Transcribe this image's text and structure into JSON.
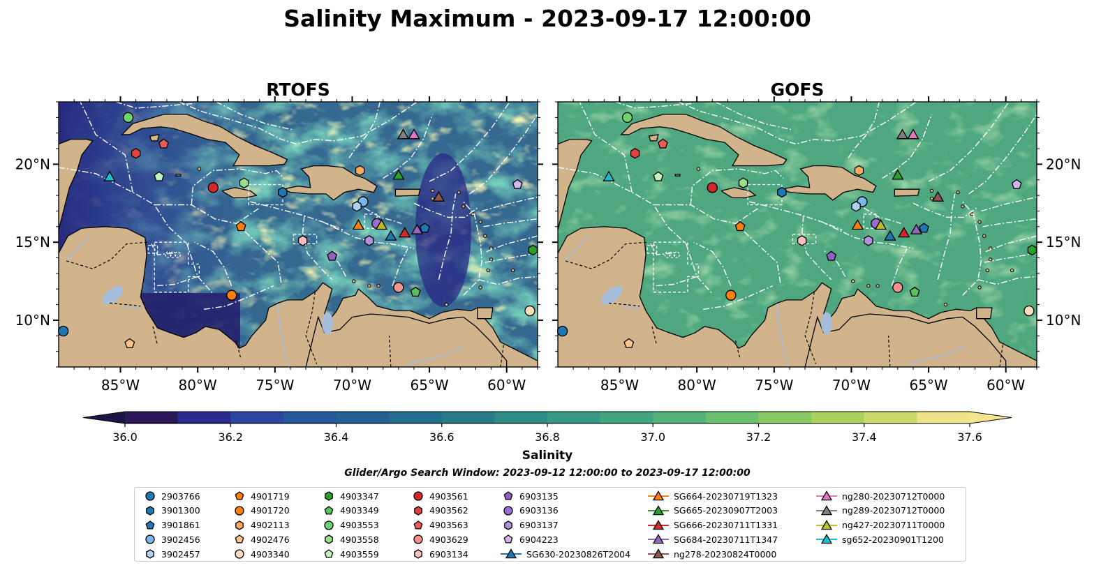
{
  "figure": {
    "suptitle": "Salinity Maximum - 2023-09-17 12:00:00",
    "panels": [
      {
        "title": "RTOFS"
      },
      {
        "title": "GOFS"
      }
    ],
    "colorbar": {
      "label": "Salinity",
      "min": 36.0,
      "max": 37.6,
      "step": 0.1,
      "extend": "both",
      "ticks": [
        "36.0",
        "36.2",
        "36.4",
        "36.6",
        "36.8",
        "37.0",
        "37.2",
        "37.4",
        "37.6"
      ],
      "colors": [
        "#2a1858",
        "#2c2a8e",
        "#2a46a0",
        "#26589c",
        "#235f93",
        "#226c8d",
        "#277c88",
        "#2e8b84",
        "#379985",
        "#41a67e",
        "#52b277",
        "#6ac06e",
        "#89c963",
        "#aad15d",
        "#cbd968",
        "#ede389"
      ]
    },
    "search_window": "Glider/Argo Search Window: 2023-09-12 12:00:00 to 2023-09-17 12:00:00",
    "colors": {
      "land": "#d2b48c",
      "river": "#a6bddb",
      "gofs_ocean": "#4fa87f",
      "boundary": "#ffffff"
    }
  },
  "chart_data": {
    "type": "map",
    "extent": {
      "lon": [
        -89,
        -58
      ],
      "lat": [
        7,
        24
      ]
    },
    "x_ticks": [
      "85°W",
      "80°W",
      "75°W",
      "70°W",
      "65°W",
      "60°W"
    ],
    "x_tick_values": [
      -85,
      -80,
      -75,
      -70,
      -65,
      -60
    ],
    "y_ticks": [
      "10°N",
      "15°N",
      "20°N"
    ],
    "y_tick_values": [
      10,
      15,
      20
    ],
    "legend": [
      {
        "label": "2903766",
        "marker": "circle",
        "color": "#1f77b4",
        "lon": -88.7,
        "lat": 9.3
      },
      {
        "label": "3901300",
        "marker": "hexagon",
        "color": "#1f77b4",
        "lon": -74.5,
        "lat": 18.2
      },
      {
        "label": "3901861",
        "marker": "pentagon",
        "color": "#1f77b4",
        "lon": -65.3,
        "lat": 15.9
      },
      {
        "label": "3902456",
        "marker": "circle",
        "color": "#7ab6e8",
        "lon": -69.3,
        "lat": 17.6
      },
      {
        "label": "3902457",
        "marker": "hexagon",
        "color": "#aed1f2",
        "lon": -69.7,
        "lat": 17.3
      },
      {
        "label": "4901719",
        "marker": "pentagon",
        "color": "#ff7f0e",
        "lon": -77.2,
        "lat": 16.0
      },
      {
        "label": "4901720",
        "marker": "circle",
        "color": "#ff7f0e",
        "lon": -77.8,
        "lat": 11.6
      },
      {
        "label": "4902113",
        "marker": "hexagon",
        "color": "#ffab5e",
        "lon": -69.5,
        "lat": 19.6
      },
      {
        "label": "4902476",
        "marker": "pentagon",
        "color": "#ffc48c",
        "lon": -84.4,
        "lat": 8.5
      },
      {
        "label": "4903340",
        "marker": "circle",
        "color": "#ffdcbc",
        "lon": -58.5,
        "lat": 10.6
      },
      {
        "label": "4903347",
        "marker": "hexagon",
        "color": "#2ca02c",
        "lon": -58.3,
        "lat": 14.5
      },
      {
        "label": "4903349",
        "marker": "pentagon",
        "color": "#5cc05c",
        "lon": -65.9,
        "lat": 11.8
      },
      {
        "label": "4903553",
        "marker": "circle",
        "color": "#6fd36f",
        "lon": -84.5,
        "lat": 23.0
      },
      {
        "label": "4903558",
        "marker": "hexagon",
        "color": "#98df8a",
        "lon": -77.0,
        "lat": 18.8
      },
      {
        "label": "4903559",
        "marker": "pentagon",
        "color": "#c5f2bd",
        "lon": -82.5,
        "lat": 19.2
      },
      {
        "label": "4903561",
        "marker": "circle",
        "color": "#d62728",
        "lon": -79.0,
        "lat": 18.5
      },
      {
        "label": "4903562",
        "marker": "hexagon",
        "color": "#e0403e",
        "lon": -84.0,
        "lat": 20.7
      },
      {
        "label": "4903563",
        "marker": "pentagon",
        "color": "#ee5a5a",
        "lon": -82.2,
        "lat": 21.3
      },
      {
        "label": "4903629",
        "marker": "circle",
        "color": "#f4908e",
        "lon": -67.0,
        "lat": 12.1
      },
      {
        "label": "6903134",
        "marker": "hexagon",
        "color": "#fbc0bd",
        "lon": -73.2,
        "lat": 15.1
      },
      {
        "label": "6903135",
        "marker": "pentagon",
        "color": "#8f62bf",
        "lon": -71.3,
        "lat": 14.1
      },
      {
        "label": "6903136",
        "marker": "circle",
        "color": "#9b6fcf",
        "lon": -68.4,
        "lat": 16.2
      },
      {
        "label": "6903137",
        "marker": "hexagon",
        "color": "#b392dd",
        "lon": -68.9,
        "lat": 15.1
      },
      {
        "label": "6904223",
        "marker": "pentagon",
        "color": "#d3b6f0",
        "lon": -59.3,
        "lat": 18.7
      },
      {
        "label": "SG630-20230826T2004",
        "marker": "triangle",
        "color": "#1f77b4",
        "lon": -67.5,
        "lat": 15.4
      },
      {
        "label": "SG664-20230719T1323",
        "marker": "triangle",
        "color": "#ff7f0e",
        "lon": -69.6,
        "lat": 16.1
      },
      {
        "label": "SG665-20230907T2003",
        "marker": "triangle",
        "color": "#2ca02c",
        "lon": -67.0,
        "lat": 19.3
      },
      {
        "label": "SG666-20230711T1331",
        "marker": "triangle",
        "color": "#d62728",
        "lon": -66.6,
        "lat": 15.6
      },
      {
        "label": "SG684-20230711T1347",
        "marker": "triangle",
        "color": "#9467bd",
        "lon": -65.8,
        "lat": 15.8
      },
      {
        "label": "ng278-20230824T0000",
        "marker": "triangle",
        "color": "#8c564b",
        "lon": -64.4,
        "lat": 17.9
      },
      {
        "label": "ng280-20230712T0000",
        "marker": "triangle",
        "color": "#e377c2",
        "lon": -66.0,
        "lat": 21.9
      },
      {
        "label": "ng289-20230712T0000",
        "marker": "triangle",
        "color": "#7f7f7f",
        "lon": -66.7,
        "lat": 21.9
      },
      {
        "label": "ng427-20230711T0000",
        "marker": "triangle",
        "color": "#bcbd22",
        "lon": -68.1,
        "lat": 16.1
      },
      {
        "label": "sg652-20230901T1200",
        "marker": "triangle",
        "color": "#17becf",
        "lon": -85.7,
        "lat": 19.2
      }
    ]
  }
}
